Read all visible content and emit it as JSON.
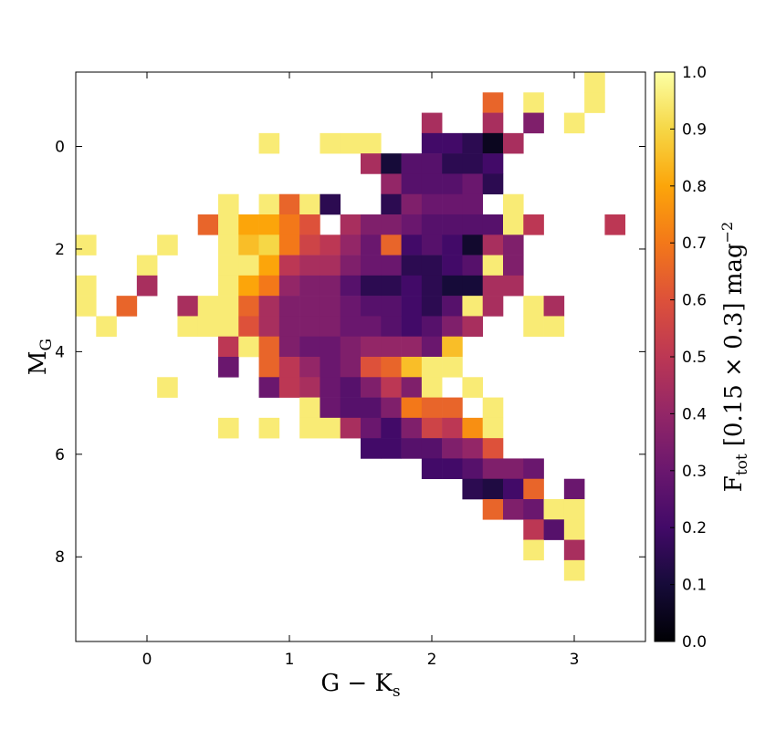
{
  "chart_data": {
    "type": "heatmap",
    "xlabel": {
      "main": "G − K",
      "sub": "s"
    },
    "ylabel": {
      "main": "M",
      "sub": "G"
    },
    "xlim": [
      -0.5,
      3.5
    ],
    "ylim": [
      -1.45,
      9.65
    ],
    "y_inverted": true,
    "xticks": [
      0,
      1,
      2,
      3
    ],
    "yticks": [
      0,
      2,
      4,
      6,
      8
    ],
    "colormap": "inferno",
    "colorbar": {
      "clim": [
        0,
        1
      ],
      "ticks": [
        {
          "value": 0,
          "label": "0.0"
        },
        0.1,
        0.2,
        0.3,
        0.4,
        0.5,
        0.6,
        0.7,
        0.8,
        0.9,
        {
          "value": 1,
          "label": "1.0"
        }
      ],
      "label": {
        "main": "F",
        "sub": "tot",
        "rest": "[0.15 × 0.3] mag",
        "sup": "−2"
      }
    },
    "z": [
      [
        null,
        null,
        null,
        null,
        null,
        null,
        null,
        null,
        null,
        null,
        null,
        null,
        null,
        null,
        null,
        null,
        null,
        null,
        null,
        null,
        null,
        null,
        null,
        null,
        null,
        0.95,
        null,
        null
      ],
      [
        null,
        null,
        null,
        null,
        null,
        null,
        null,
        null,
        null,
        null,
        null,
        null,
        null,
        null,
        null,
        null,
        null,
        null,
        null,
        null,
        0.65,
        null,
        0.95,
        null,
        null,
        0.95,
        null,
        null
      ],
      [
        null,
        null,
        null,
        null,
        null,
        null,
        null,
        null,
        null,
        null,
        null,
        null,
        null,
        null,
        null,
        null,
        null,
        0.45,
        null,
        null,
        0.45,
        null,
        0.35,
        null,
        0.95,
        null,
        null,
        null
      ],
      [
        null,
        null,
        null,
        null,
        null,
        null,
        null,
        null,
        null,
        0.95,
        null,
        null,
        0.95,
        0.95,
        0.95,
        null,
        null,
        0.2,
        0.2,
        0.15,
        0.05,
        0.45,
        null,
        null,
        null,
        null,
        null,
        null
      ],
      [
        null,
        null,
        null,
        null,
        null,
        null,
        null,
        null,
        null,
        null,
        null,
        null,
        null,
        null,
        0.45,
        0.1,
        0.25,
        0.25,
        0.15,
        0.15,
        0.2,
        null,
        null,
        null,
        null,
        null,
        null,
        null
      ],
      [
        null,
        null,
        null,
        null,
        null,
        null,
        null,
        null,
        null,
        null,
        null,
        null,
        null,
        null,
        null,
        0.4,
        0.25,
        0.25,
        0.25,
        0.3,
        0.15,
        null,
        null,
        null,
        null,
        null,
        null,
        null
      ],
      [
        null,
        null,
        null,
        null,
        null,
        null,
        null,
        0.95,
        null,
        0.95,
        0.65,
        0.95,
        0.15,
        null,
        null,
        0.15,
        0.35,
        0.3,
        0.3,
        0.3,
        null,
        0.95,
        null,
        null,
        null,
        null,
        null,
        null
      ],
      [
        null,
        null,
        null,
        null,
        null,
        null,
        0.65,
        0.95,
        0.8,
        0.8,
        0.7,
        0.6,
        null,
        0.45,
        0.35,
        0.35,
        0.3,
        0.25,
        0.25,
        0.25,
        0.25,
        0.95,
        0.5,
        null,
        null,
        null,
        0.5,
        null
      ],
      [
        0.95,
        null,
        null,
        null,
        0.95,
        null,
        null,
        0.95,
        0.85,
        0.9,
        0.7,
        0.55,
        0.5,
        0.4,
        0.3,
        0.65,
        0.2,
        0.25,
        0.2,
        0.08,
        0.45,
        0.35,
        null,
        null,
        null,
        null,
        null,
        null
      ],
      [
        null,
        null,
        null,
        0.95,
        null,
        null,
        null,
        0.95,
        0.95,
        0.8,
        0.5,
        0.45,
        0.45,
        0.35,
        0.3,
        0.3,
        0.15,
        0.15,
        0.2,
        0.25,
        0.95,
        0.35,
        null,
        null,
        null,
        null,
        null,
        null
      ],
      [
        0.95,
        null,
        null,
        0.45,
        null,
        null,
        null,
        0.95,
        0.8,
        0.7,
        0.4,
        0.35,
        0.35,
        0.25,
        0.15,
        0.15,
        0.2,
        0.15,
        0.1,
        0.1,
        0.45,
        0.45,
        null,
        null,
        null,
        null,
        null,
        null
      ],
      [
        0.95,
        null,
        0.65,
        null,
        null,
        0.45,
        0.95,
        0.95,
        0.65,
        0.45,
        0.35,
        0.35,
        0.35,
        0.3,
        0.25,
        0.25,
        0.2,
        0.15,
        0.25,
        0.95,
        0.45,
        null,
        0.95,
        0.45,
        null,
        null,
        null,
        null
      ],
      [
        null,
        0.95,
        null,
        null,
        null,
        0.95,
        0.95,
        0.95,
        0.6,
        0.45,
        0.35,
        0.35,
        0.35,
        0.3,
        0.3,
        0.25,
        0.2,
        0.25,
        0.35,
        0.45,
        null,
        null,
        0.95,
        0.95,
        null,
        null,
        null,
        null
      ],
      [
        null,
        null,
        null,
        null,
        null,
        null,
        null,
        0.5,
        0.95,
        0.65,
        0.35,
        0.3,
        0.3,
        0.35,
        0.4,
        0.4,
        0.4,
        0.3,
        0.85,
        null,
        null,
        null,
        null,
        null,
        null,
        null,
        null,
        null
      ],
      [
        null,
        null,
        null,
        null,
        null,
        null,
        null,
        0.3,
        null,
        0.65,
        0.5,
        0.4,
        0.3,
        0.35,
        0.6,
        0.65,
        0.85,
        0.95,
        0.95,
        null,
        null,
        null,
        null,
        null,
        null,
        null,
        null,
        null
      ],
      [
        null,
        null,
        null,
        null,
        0.95,
        null,
        null,
        null,
        null,
        0.3,
        0.5,
        0.45,
        0.3,
        0.25,
        0.35,
        0.5,
        0.35,
        0.95,
        null,
        0.95,
        null,
        null,
        null,
        null,
        null,
        null,
        null,
        null
      ],
      [
        null,
        null,
        null,
        null,
        null,
        null,
        null,
        null,
        null,
        null,
        null,
        0.95,
        0.3,
        0.25,
        0.25,
        0.35,
        0.7,
        0.65,
        0.65,
        null,
        0.95,
        null,
        null,
        null,
        null,
        null,
        null,
        null
      ],
      [
        null,
        null,
        null,
        null,
        null,
        null,
        null,
        0.95,
        null,
        0.95,
        null,
        0.95,
        0.95,
        0.45,
        0.3,
        0.2,
        0.35,
        0.55,
        0.5,
        0.75,
        0.95,
        null,
        null,
        null,
        null,
        null,
        null,
        null
      ],
      [
        null,
        null,
        null,
        null,
        null,
        null,
        null,
        null,
        null,
        null,
        null,
        null,
        null,
        null,
        0.2,
        0.2,
        0.25,
        0.25,
        0.35,
        0.4,
        0.6,
        null,
        null,
        null,
        null,
        null,
        null,
        null
      ],
      [
        null,
        null,
        null,
        null,
        null,
        null,
        null,
        null,
        null,
        null,
        null,
        null,
        null,
        null,
        null,
        null,
        null,
        0.2,
        0.2,
        0.25,
        0.35,
        0.35,
        0.3,
        null,
        null,
        null,
        null,
        null
      ],
      [
        null,
        null,
        null,
        null,
        null,
        null,
        null,
        null,
        null,
        null,
        null,
        null,
        null,
        null,
        null,
        null,
        null,
        null,
        null,
        0.15,
        0.12,
        0.2,
        0.65,
        null,
        0.3,
        null,
        null,
        null
      ],
      [
        null,
        null,
        null,
        null,
        null,
        null,
        null,
        null,
        null,
        null,
        null,
        null,
        null,
        null,
        null,
        null,
        null,
        null,
        null,
        null,
        0.65,
        0.35,
        0.3,
        0.95,
        0.95,
        null,
        null,
        null
      ],
      [
        null,
        null,
        null,
        null,
        null,
        null,
        null,
        null,
        null,
        null,
        null,
        null,
        null,
        null,
        null,
        null,
        null,
        null,
        null,
        null,
        null,
        null,
        0.5,
        0.25,
        0.95,
        null,
        null,
        null
      ],
      [
        null,
        null,
        null,
        null,
        null,
        null,
        null,
        null,
        null,
        null,
        null,
        null,
        null,
        null,
        null,
        null,
        null,
        null,
        null,
        null,
        null,
        null,
        0.95,
        null,
        0.45,
        null,
        null,
        null
      ],
      [
        null,
        null,
        null,
        null,
        null,
        null,
        null,
        null,
        null,
        null,
        null,
        null,
        null,
        null,
        null,
        null,
        null,
        null,
        null,
        null,
        null,
        null,
        null,
        null,
        0.95,
        null,
        null,
        null
      ],
      [
        null,
        null,
        null,
        null,
        null,
        null,
        null,
        null,
        null,
        null,
        null,
        null,
        null,
        null,
        null,
        null,
        null,
        null,
        null,
        null,
        null,
        null,
        null,
        null,
        null,
        null,
        null,
        null
      ],
      [
        null,
        null,
        null,
        null,
        null,
        null,
        null,
        null,
        null,
        null,
        null,
        null,
        null,
        null,
        null,
        null,
        null,
        null,
        null,
        null,
        null,
        null,
        null,
        null,
        null,
        null,
        null,
        null
      ],
      [
        null,
        null,
        null,
        null,
        null,
        null,
        null,
        null,
        null,
        null,
        null,
        null,
        null,
        null,
        null,
        null,
        null,
        null,
        null,
        null,
        null,
        null,
        null,
        null,
        null,
        null,
        null,
        null
      ]
    ]
  }
}
